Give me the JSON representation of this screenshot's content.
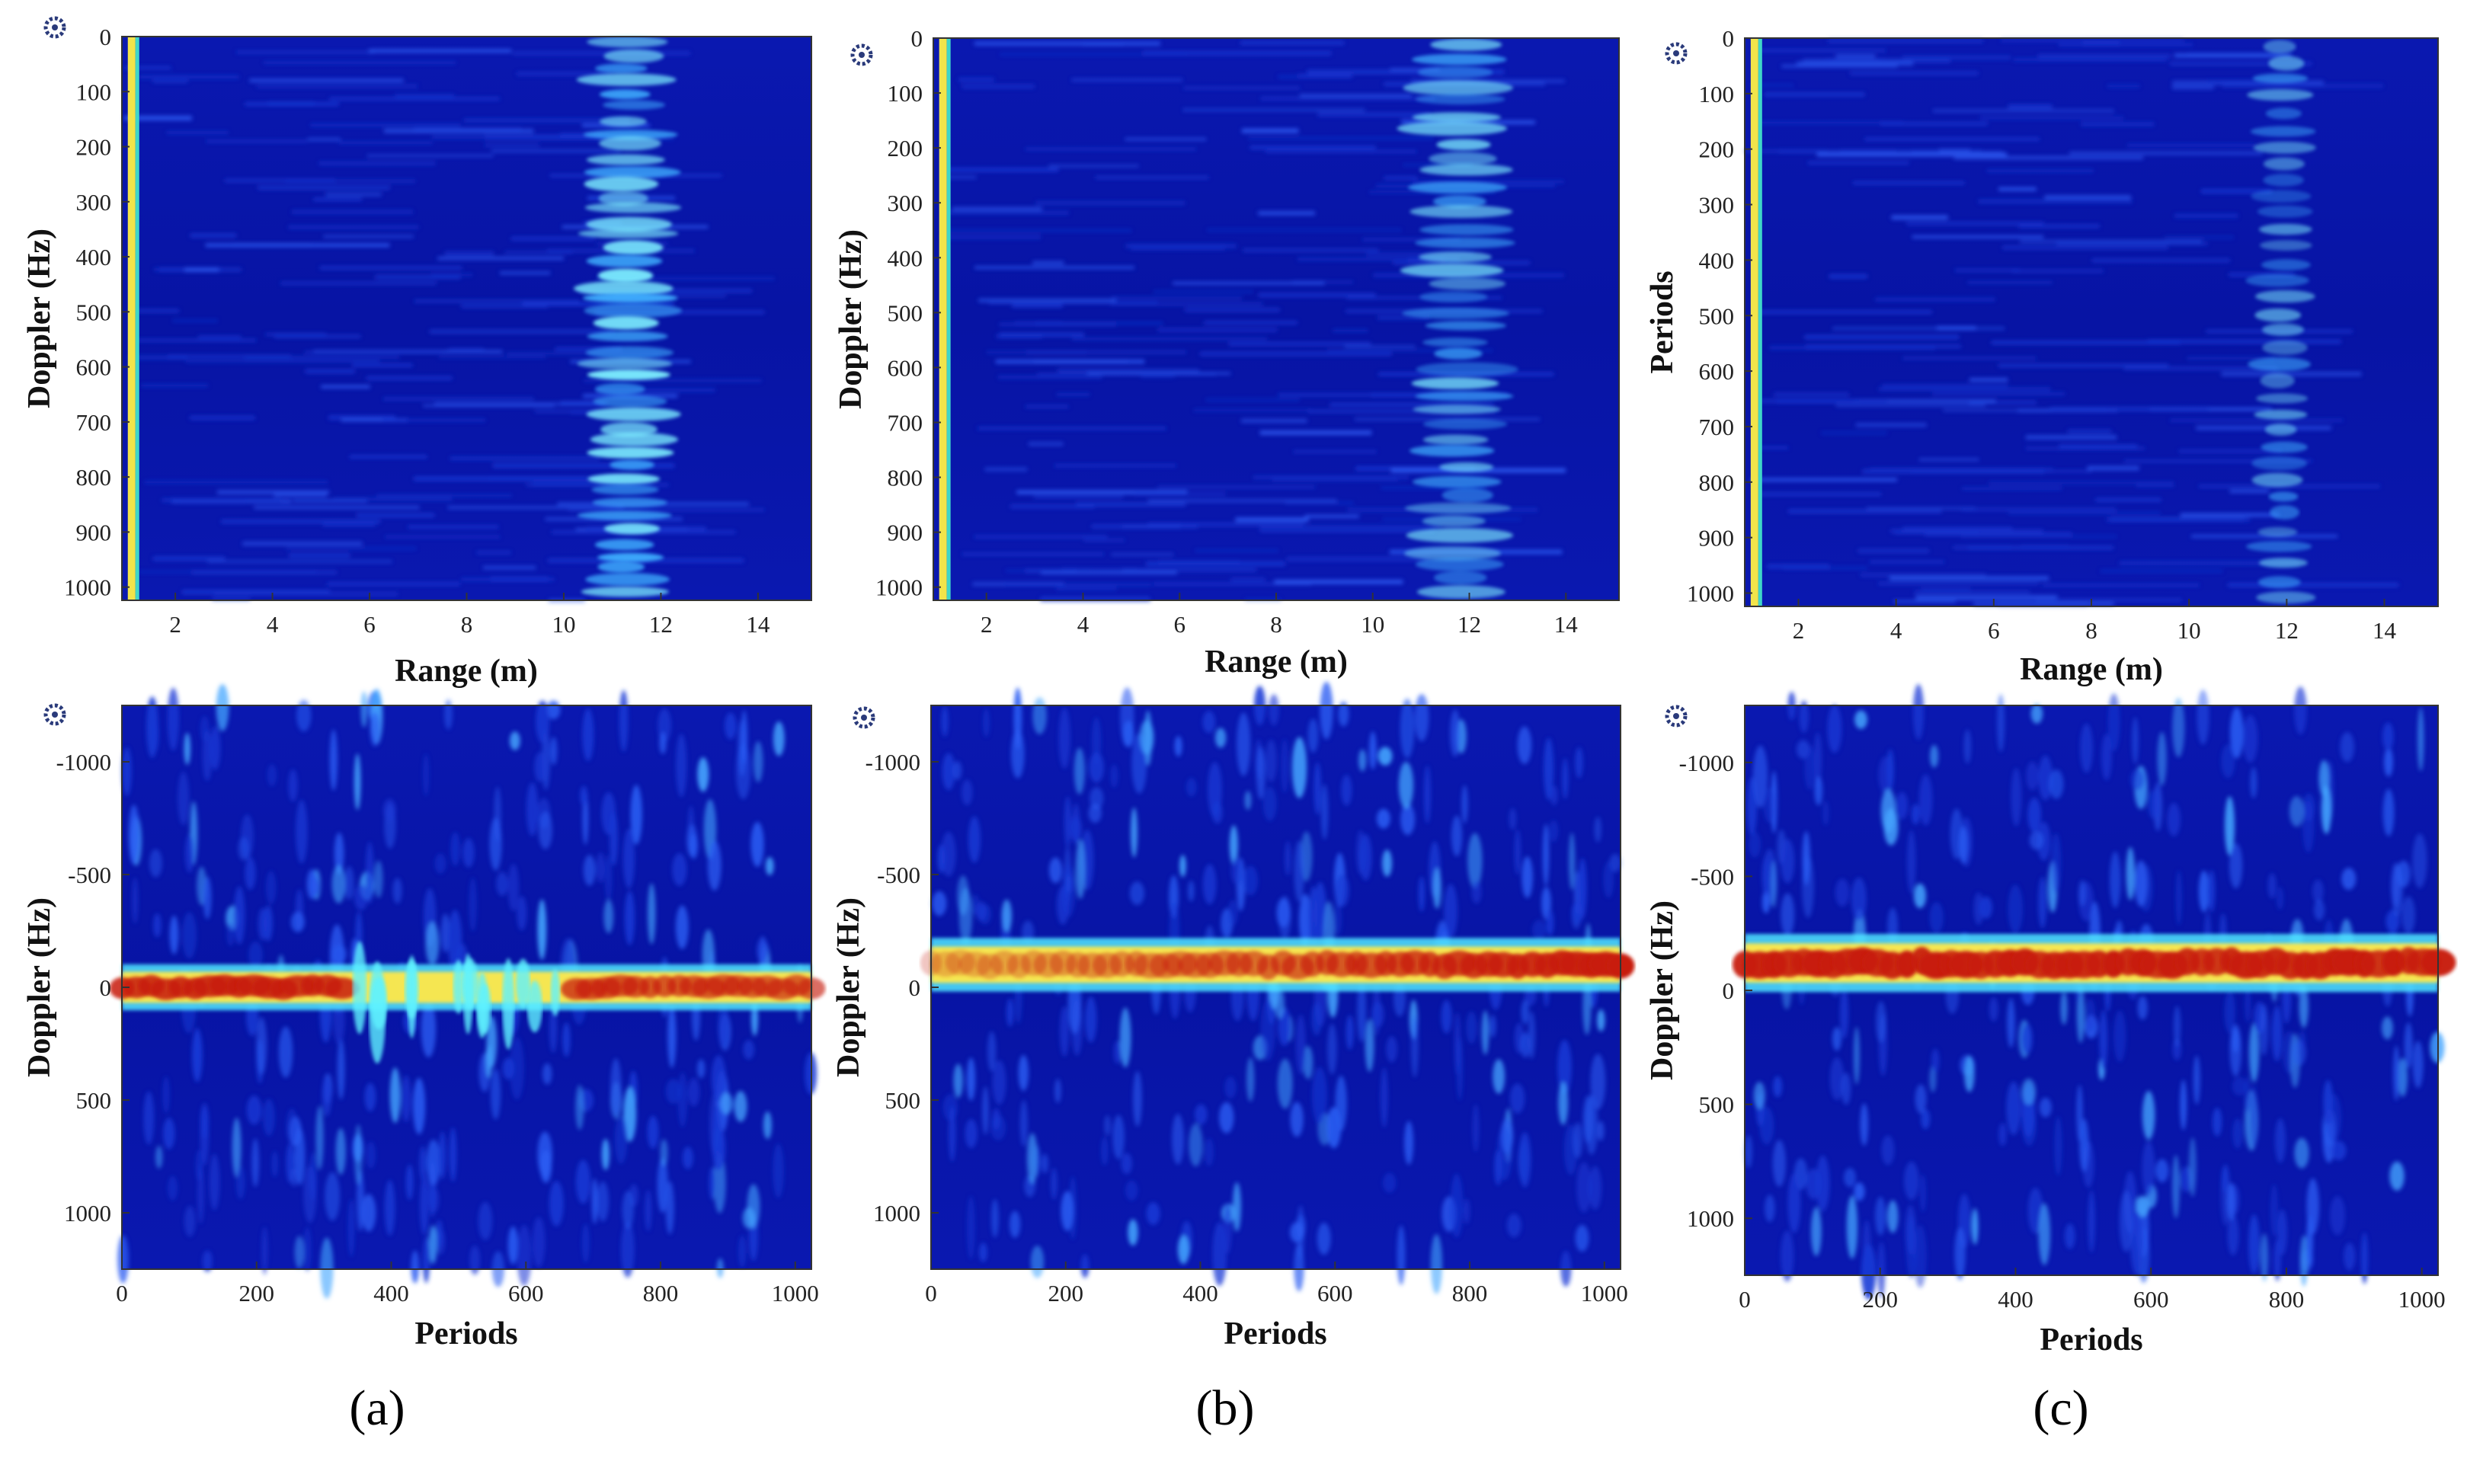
{
  "chart_data": [
    {
      "id": "a-top",
      "type": "heatmap",
      "title": "",
      "xlabel": "Range (m)",
      "ylabel": "Doppler (Hz)",
      "x_ticks": [
        2,
        4,
        6,
        8,
        10,
        12,
        14
      ],
      "y_ticks": [
        0,
        100,
        200,
        300,
        400,
        500,
        600,
        700,
        800,
        900,
        1000
      ],
      "xlim": [
        0.9,
        15.1
      ],
      "ylim": [
        0,
        1024
      ],
      "y_reversed": true,
      "grid": false,
      "corner_icon": "gear-icon",
      "features": [
        {
          "kind": "range-line",
          "x": 1.1,
          "description": "bright vertical line near origin"
        },
        {
          "kind": "target-band",
          "x_from": 10.5,
          "x_to": 12.5,
          "center": 11.3,
          "intensity": "strong"
        }
      ]
    },
    {
      "id": "b-top",
      "type": "heatmap",
      "title": "",
      "xlabel": "Range (m)",
      "ylabel": "Doppler (Hz)",
      "x_ticks": [
        2,
        4,
        6,
        8,
        10,
        12,
        14
      ],
      "y_ticks": [
        0,
        100,
        200,
        300,
        400,
        500,
        600,
        700,
        800,
        900,
        1000
      ],
      "xlim": [
        0.9,
        15.1
      ],
      "ylim": [
        0,
        1024
      ],
      "y_reversed": true,
      "grid": false,
      "corner_icon": "gear-icon",
      "features": [
        {
          "kind": "range-line",
          "x": 1.1
        },
        {
          "kind": "target-band",
          "x_from": 10.8,
          "x_to": 13.0,
          "center": 11.8,
          "intensity": "medium"
        }
      ]
    },
    {
      "id": "c-top",
      "type": "heatmap",
      "title": "",
      "xlabel": "Range (m)",
      "ylabel": "Periods",
      "x_ticks": [
        2,
        4,
        6,
        8,
        10,
        12,
        14
      ],
      "y_ticks": [
        0,
        100,
        200,
        300,
        400,
        500,
        600,
        700,
        800,
        900,
        1000
      ],
      "xlim": [
        0.9,
        15.1
      ],
      "ylim": [
        0,
        1024
      ],
      "y_reversed": true,
      "grid": false,
      "corner_icon": "gear-icon",
      "features": [
        {
          "kind": "range-line",
          "x": 1.1
        },
        {
          "kind": "target-band",
          "x_from": 11.3,
          "x_to": 12.6,
          "center": 11.9,
          "intensity": "weak"
        }
      ]
    },
    {
      "id": "a-bottom",
      "type": "heatmap",
      "title": "",
      "xlabel": "Periods",
      "ylabel": "Doppler (Hz)",
      "x_ticks": [
        0,
        200,
        400,
        600,
        800,
        1000
      ],
      "y_ticks": [
        -1000,
        -500,
        0,
        500,
        1000
      ],
      "y_tick_labels": [
        "-1000",
        "-500",
        "0",
        "500",
        "1000"
      ],
      "xlim": [
        0,
        1024
      ],
      "ylim": [
        -1250,
        1250
      ],
      "y_reversed": true,
      "grid": false,
      "corner_icon": "gear-icon",
      "features": [
        {
          "kind": "doppler-band",
          "center": 0,
          "half_width": 60,
          "note": "red band broken around periods 350-650"
        }
      ]
    },
    {
      "id": "b-bottom",
      "type": "heatmap",
      "title": "",
      "xlabel": "Periods",
      "ylabel": "Doppler (Hz)",
      "x_ticks": [
        0,
        200,
        400,
        600,
        800,
        1000
      ],
      "y_ticks": [
        -1000,
        -500,
        0,
        500,
        1000
      ],
      "y_tick_labels": [
        "-1000",
        "-500",
        "0",
        "500",
        "1000"
      ],
      "xlim": [
        0,
        1024
      ],
      "ylim": [
        -1250,
        1250
      ],
      "y_reversed": true,
      "grid": false,
      "corner_icon": "gear-icon",
      "features": [
        {
          "kind": "doppler-band",
          "center": -100,
          "half_width": 70,
          "note": "band strengthens from yellow to red with increasing periods"
        }
      ]
    },
    {
      "id": "c-bottom",
      "type": "heatmap",
      "title": "",
      "xlabel": "Periods",
      "ylabel": "Doppler (Hz)",
      "x_ticks": [
        0,
        200,
        400,
        600,
        800,
        1000
      ],
      "y_ticks": [
        -1000,
        -500,
        0,
        500,
        1000
      ],
      "y_tick_labels": [
        "-1000",
        "-500",
        "0",
        "500",
        "1000"
      ],
      "xlim": [
        0,
        1024
      ],
      "ylim": [
        -1250,
        1250
      ],
      "y_reversed": true,
      "grid": false,
      "corner_icon": "gear-icon",
      "features": [
        {
          "kind": "doppler-band",
          "center": -120,
          "half_width": 75,
          "note": "continuous strong red band"
        }
      ]
    }
  ],
  "captions": [
    "(a)",
    "(b)",
    "(c)"
  ],
  "colors": {
    "background": "#07119c",
    "band_cyan": "#4fe6ff",
    "band_yellow": "#ffe84a",
    "band_red": "#c81d08",
    "range_line": "#f2e44a"
  }
}
